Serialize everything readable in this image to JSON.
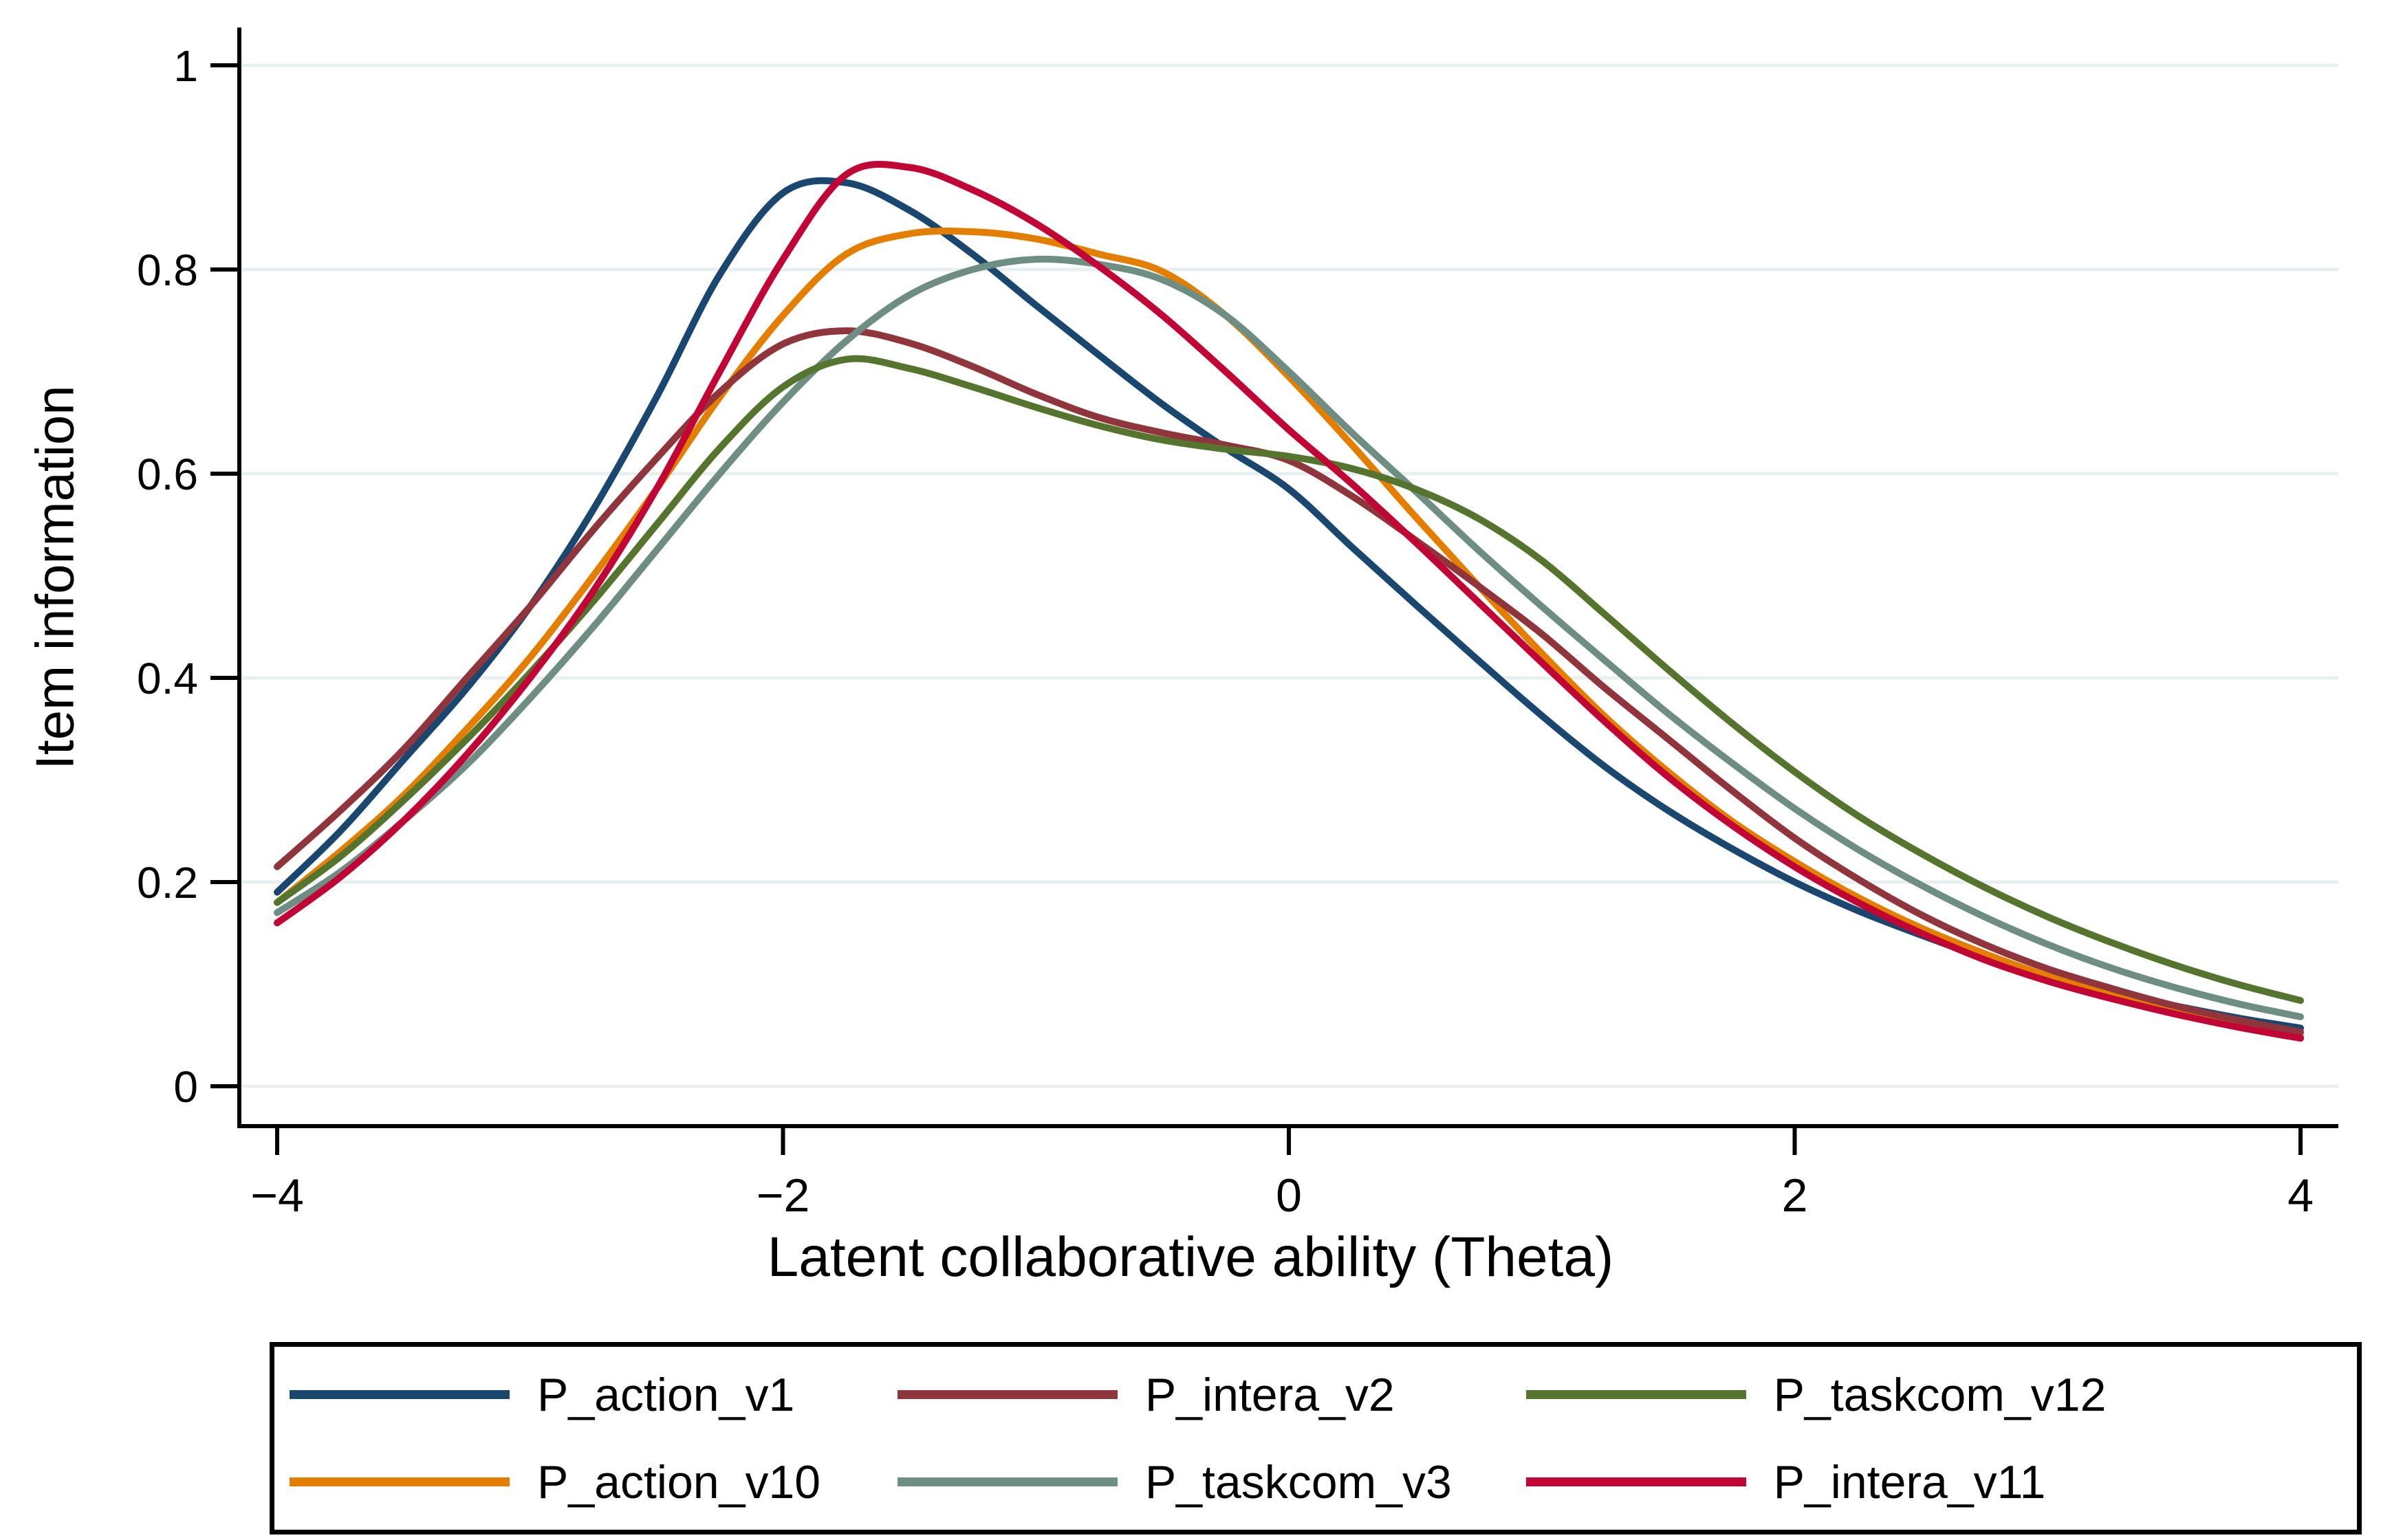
{
  "figure": {
    "background": "#ffffff",
    "y_axis": {
      "title": "Item information",
      "tick_labels": [
        "0",
        "0.2",
        "0.4",
        "0.6",
        "0.8",
        "1"
      ],
      "tick_values": [
        0,
        0.2,
        0.4,
        0.6,
        0.8,
        1
      ]
    },
    "x_axis": {
      "title": "Latent collaborative ability (Theta)",
      "tick_labels": [
        "−4",
        "−2",
        "0",
        "2",
        "4"
      ],
      "tick_values": [
        -4,
        -2,
        0,
        2,
        4
      ]
    },
    "gridline_color": "#e8eff1",
    "axis_color": "#000000"
  },
  "chart_data": {
    "type": "line",
    "title": "",
    "xlabel": "Latent collaborative ability (Theta)",
    "ylabel": "Item information",
    "xlim": [
      -4,
      4
    ],
    "ylim": [
      0,
      1.04
    ],
    "grid": "horizontal",
    "legend_position": "bottom-box",
    "x": [
      -4,
      -3.75,
      -3.5,
      -3.25,
      -3,
      -2.75,
      -2.5,
      -2.25,
      -2,
      -1.75,
      -1.5,
      -1.25,
      -1,
      -0.75,
      -0.5,
      -0.25,
      0,
      0.25,
      0.5,
      0.75,
      1,
      1.25,
      1.5,
      1.75,
      2,
      2.25,
      2.5,
      2.75,
      3,
      3.25,
      3.5,
      3.75,
      4
    ],
    "draw_order": [
      0,
      3,
      1,
      4,
      2,
      5
    ],
    "series": [
      {
        "name": "P_action_v1",
        "color": "#1a476f",
        "peak": {
          "theta": -1.85,
          "info": 0.885
        },
        "values": [
          0.19,
          0.25,
          0.32,
          0.39,
          0.47,
          0.565,
          0.675,
          0.795,
          0.875,
          0.885,
          0.858,
          0.815,
          0.765,
          0.716,
          0.668,
          0.625,
          0.585,
          0.528,
          0.472,
          0.417,
          0.363,
          0.313,
          0.27,
          0.233,
          0.2,
          0.172,
          0.148,
          0.126,
          0.107,
          0.092,
          0.079,
          0.067,
          0.057
        ]
      },
      {
        "name": "P_intera_v2",
        "color": "#90353b",
        "peak": {
          "theta": -1.75,
          "info": 0.74
        },
        "values": [
          0.215,
          0.27,
          0.33,
          0.4,
          0.47,
          0.545,
          0.615,
          0.68,
          0.727,
          0.74,
          0.728,
          0.705,
          0.678,
          0.655,
          0.64,
          0.628,
          0.613,
          0.578,
          0.535,
          0.49,
          0.443,
          0.39,
          0.34,
          0.29,
          0.243,
          0.203,
          0.168,
          0.139,
          0.115,
          0.096,
          0.079,
          0.065,
          0.053
        ]
      },
      {
        "name": "P_taskcom_v12",
        "color": "#55752f",
        "peak": {
          "theta": -1.75,
          "info": 0.712
        },
        "values": [
          0.18,
          0.225,
          0.28,
          0.34,
          0.405,
          0.475,
          0.55,
          0.625,
          0.685,
          0.712,
          0.703,
          0.685,
          0.665,
          0.647,
          0.633,
          0.624,
          0.617,
          0.605,
          0.585,
          0.556,
          0.515,
          0.462,
          0.408,
          0.356,
          0.308,
          0.265,
          0.228,
          0.195,
          0.166,
          0.141,
          0.119,
          0.1,
          0.084
        ]
      },
      {
        "name": "P_action_v10",
        "color": "#e37e00",
        "peak": {
          "theta": -1.5,
          "info": 0.837
        },
        "values": [
          0.18,
          0.23,
          0.285,
          0.35,
          0.42,
          0.5,
          0.585,
          0.675,
          0.755,
          0.815,
          0.835,
          0.837,
          0.83,
          0.815,
          0.798,
          0.755,
          0.695,
          0.628,
          0.558,
          0.49,
          0.424,
          0.362,
          0.308,
          0.26,
          0.22,
          0.185,
          0.155,
          0.13,
          0.108,
          0.09,
          0.075,
          0.061,
          0.049
        ]
      },
      {
        "name": "P_taskcom_v3",
        "color": "#6e8e84",
        "peak": {
          "theta": -1.1,
          "info": 0.81
        },
        "values": [
          0.17,
          0.21,
          0.26,
          0.315,
          0.38,
          0.45,
          0.525,
          0.6,
          0.67,
          0.73,
          0.775,
          0.8,
          0.81,
          0.805,
          0.79,
          0.755,
          0.7,
          0.64,
          0.583,
          0.525,
          0.47,
          0.417,
          0.365,
          0.317,
          0.272,
          0.232,
          0.197,
          0.166,
          0.139,
          0.116,
          0.097,
          0.081,
          0.068
        ]
      },
      {
        "name": "P_intera_v11",
        "color": "#c10534",
        "peak": {
          "theta": -1.6,
          "info": 0.9
        },
        "values": [
          0.16,
          0.205,
          0.26,
          0.325,
          0.4,
          0.485,
          0.585,
          0.7,
          0.81,
          0.893,
          0.9,
          0.878,
          0.845,
          0.803,
          0.755,
          0.7,
          0.643,
          0.59,
          0.533,
          0.474,
          0.415,
          0.357,
          0.303,
          0.256,
          0.215,
          0.18,
          0.15,
          0.124,
          0.103,
          0.086,
          0.071,
          0.058,
          0.047
        ]
      }
    ]
  },
  "legend": {
    "rows": 2,
    "columns": 3,
    "border_color": "#000000"
  }
}
